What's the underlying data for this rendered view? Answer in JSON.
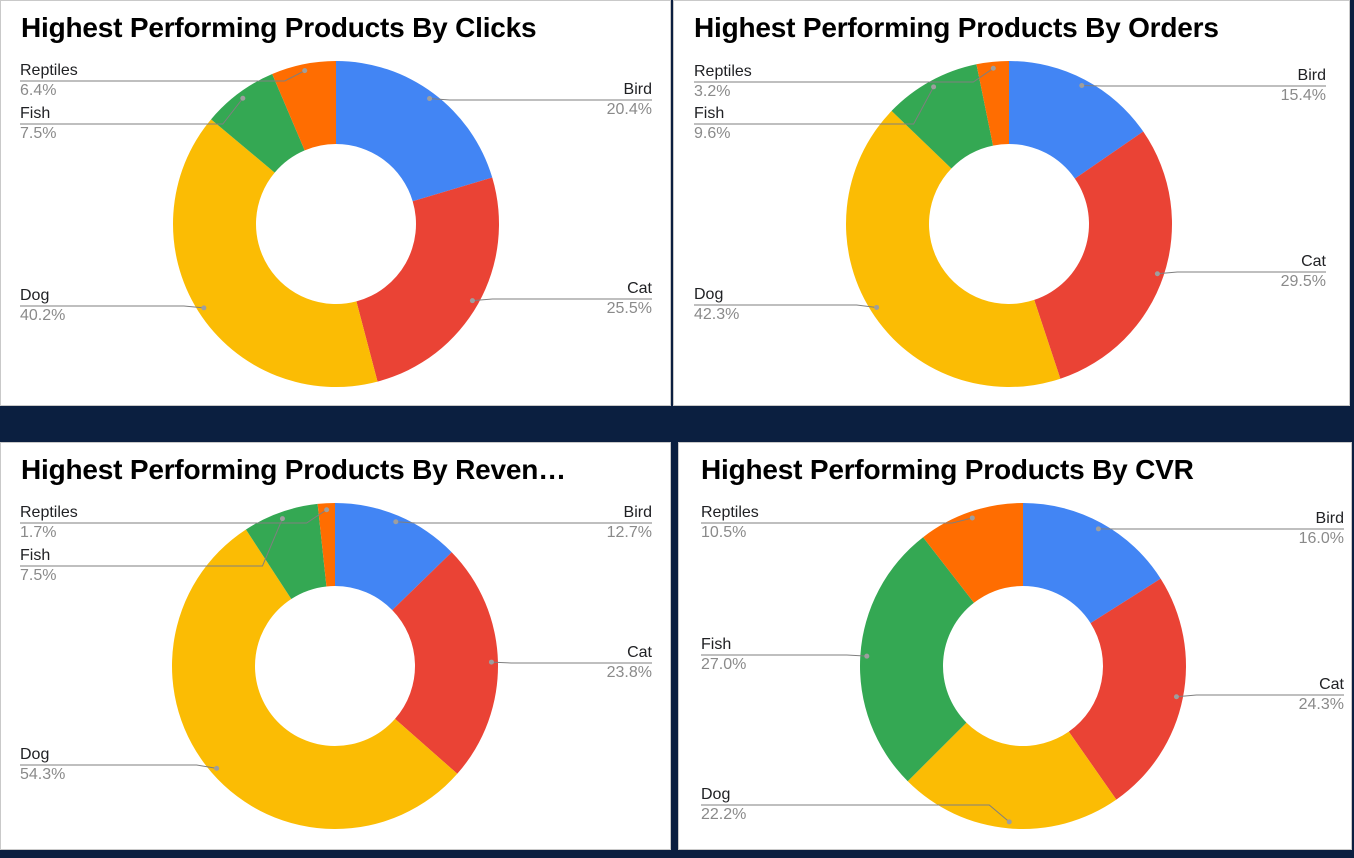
{
  "colors": {
    "Bird": "#4285f4",
    "Cat": "#ea4335",
    "Dog": "#fbbc04",
    "Fish": "#34a853",
    "Reptiles": "#ff6d01"
  },
  "chart_data": [
    {
      "type": "pie",
      "title": "Highest Performing Products By Clicks",
      "donut": true,
      "slices": [
        {
          "label": "Bird",
          "value": 20.4,
          "display": "20.4%"
        },
        {
          "label": "Cat",
          "value": 25.5,
          "display": "25.5%"
        },
        {
          "label": "Dog",
          "value": 40.2,
          "display": "40.2%"
        },
        {
          "label": "Fish",
          "value": 7.5,
          "display": "7.5%"
        },
        {
          "label": "Reptiles",
          "value": 6.4,
          "display": "6.4%"
        }
      ]
    },
    {
      "type": "pie",
      "title": "Highest Performing Products By Orders",
      "donut": true,
      "slices": [
        {
          "label": "Bird",
          "value": 15.4,
          "display": "15.4%"
        },
        {
          "label": "Cat",
          "value": 29.5,
          "display": "29.5%"
        },
        {
          "label": "Dog",
          "value": 42.3,
          "display": "42.3%"
        },
        {
          "label": "Fish",
          "value": 9.6,
          "display": "9.6%"
        },
        {
          "label": "Reptiles",
          "value": 3.2,
          "display": "3.2%"
        }
      ]
    },
    {
      "type": "pie",
      "title": "Highest Performing Products By Reven…",
      "donut": true,
      "slices": [
        {
          "label": "Bird",
          "value": 12.7,
          "display": "12.7%"
        },
        {
          "label": "Cat",
          "value": 23.8,
          "display": "23.8%"
        },
        {
          "label": "Dog",
          "value": 54.3,
          "display": "54.3%"
        },
        {
          "label": "Fish",
          "value": 7.5,
          "display": "7.5%"
        },
        {
          "label": "Reptiles",
          "value": 1.7,
          "display": "1.7%"
        }
      ]
    },
    {
      "type": "pie",
      "title": "Highest Performing Products By CVR",
      "donut": true,
      "slices": [
        {
          "label": "Bird",
          "value": 16.0,
          "display": "16.0%"
        },
        {
          "label": "Cat",
          "value": 24.3,
          "display": "24.3%"
        },
        {
          "label": "Dog",
          "value": 22.2,
          "display": "22.2%"
        },
        {
          "label": "Fish",
          "value": 27.0,
          "display": "27.0%"
        },
        {
          "label": "Reptiles",
          "value": 10.5,
          "display": "10.5%"
        }
      ]
    }
  ]
}
